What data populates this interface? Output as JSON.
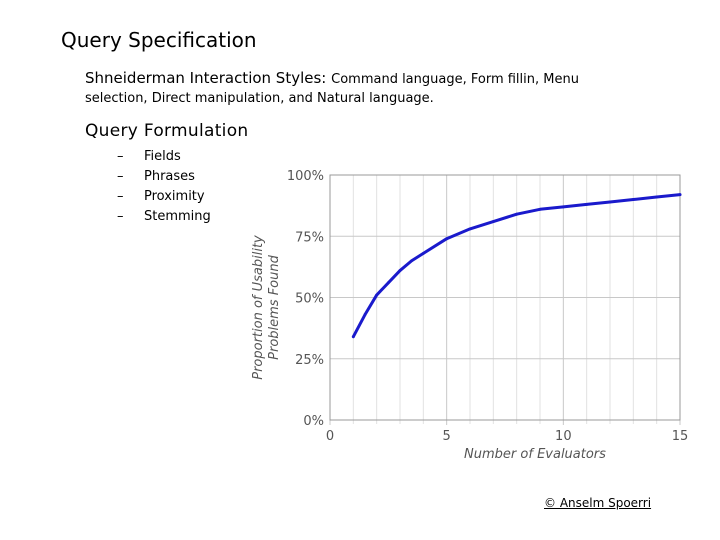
{
  "slide": {
    "title": "Query Specification",
    "styles_label": "Shneiderman Interaction Styles: ",
    "styles_line1_rest": "Command language, Form fillin, Menu",
    "styles_line2": "selection, Direct manipulation, and Natural language.",
    "qf_heading": "Query Formulation",
    "bullet_marker": "–",
    "bullets": [
      "Fields",
      "Phrases",
      "Proximity",
      "Stemming"
    ],
    "copyright": "© Anselm Spoerri"
  },
  "chart_data": {
    "type": "line",
    "title": "",
    "xlabel": "Number of Evaluators",
    "ylabel_lines": [
      "Proportion of Usability",
      "Problems Found"
    ],
    "xlim": [
      0,
      15
    ],
    "ylim": [
      0,
      100
    ],
    "x_ticks": [
      0,
      5,
      10,
      15
    ],
    "x_tick_labels": [
      "0",
      "5",
      "10",
      "15"
    ],
    "y_ticks": [
      0,
      25,
      50,
      75,
      100
    ],
    "y_tick_labels": [
      "0%",
      "25%",
      "50%",
      "75%",
      "100%"
    ],
    "grid": true,
    "line_color": "#1a1acc",
    "series": [
      {
        "x": [
          1,
          1.5,
          2,
          2.5,
          3,
          3.5,
          4,
          5,
          6,
          7,
          8,
          9,
          10,
          11,
          12,
          13,
          14,
          15
        ],
        "y": [
          34,
          43,
          51,
          56,
          61,
          65,
          68,
          74,
          78,
          81,
          84,
          86,
          87,
          88,
          89,
          90,
          91,
          92
        ]
      }
    ]
  }
}
